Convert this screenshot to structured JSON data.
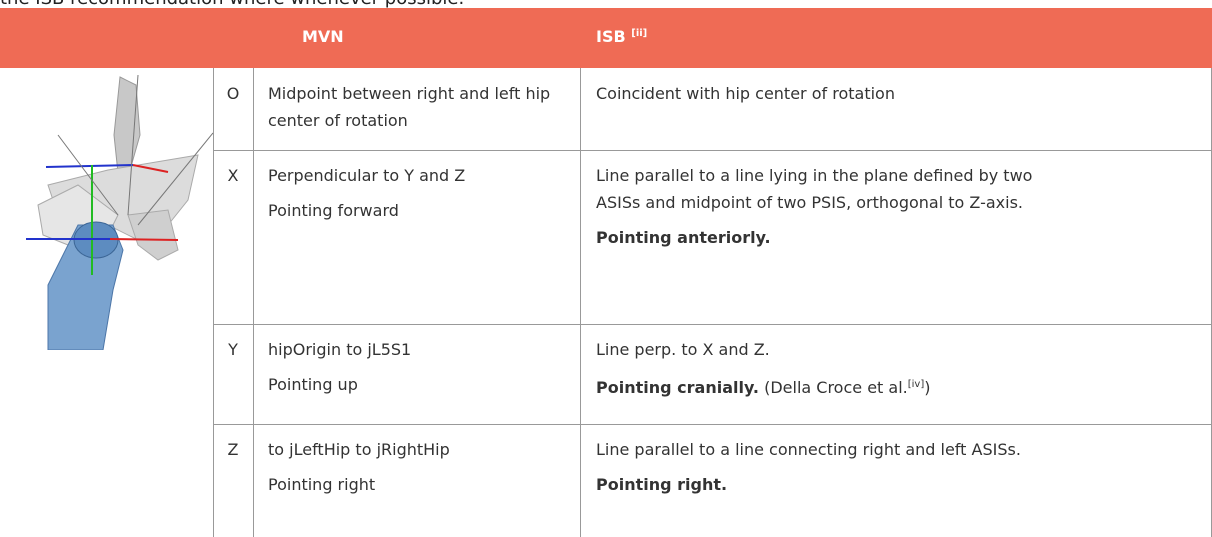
{
  "intro": "the ISB recommendation where whenever possible.",
  "table": {
    "header": {
      "mvn": "MVN",
      "isb": {
        "text": "ISB",
        "ref": "[ii]"
      }
    },
    "rows": [
      {
        "axis": "O",
        "mvn": [
          "Midpoint between right and left hip center of rotation"
        ],
        "isb": [
          {
            "text": "Coincident with hip center of rotation"
          }
        ]
      },
      {
        "axis": "X",
        "mvn": [
          "Perpendicular to Y and Z",
          "Pointing forward"
        ],
        "isb": [
          {
            "text": "Line parallel to a line lying in the plane defined by two ASISs and midpoint of two PSIS, orthogonal to Z-axis."
          },
          {
            "bold": "Pointing anteriorly."
          }
        ]
      },
      {
        "axis": "Y",
        "mvn": [
          "hipOrigin to jL5S1",
          "Pointing up"
        ],
        "isb": [
          {
            "text": "Line perp. to X and Z."
          },
          {
            "bold": "Pointing cranially.",
            "text": " (Della Croce et al.",
            "ref": "[iv]",
            "end": ")"
          }
        ]
      },
      {
        "axis": "Z",
        "mvn": [
          "to jLeftHip to jRightHip",
          "Pointing right"
        ],
        "isb": [
          {
            "text": "Line parallel to a line connecting right and left ASISs."
          },
          {
            "bold": "Pointing right."
          }
        ]
      }
    ]
  }
}
